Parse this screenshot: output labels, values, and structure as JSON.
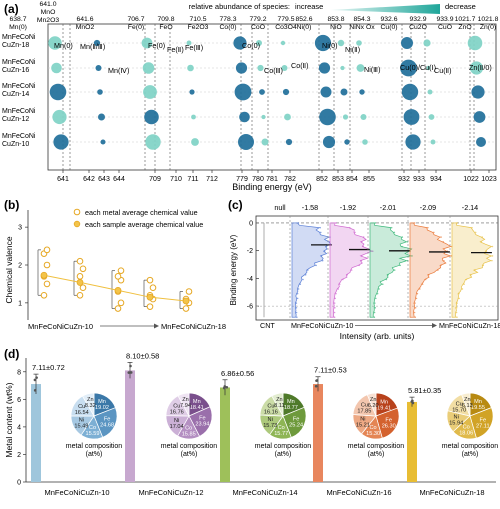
{
  "panel_labels": {
    "a": "(a)",
    "b": "(b)",
    "c": "(c)",
    "d": "(d)"
  },
  "colors": {
    "teal_dark": "#1f6f9a",
    "teal_light": "#7fd3c6",
    "gold": "#e6a824"
  },
  "chart_data": [
    {
      "type": "scatter",
      "panel": "a",
      "xlabel": "Binding energy (eV)",
      "legend_text": "relative abundance of species:",
      "legend_increase": "increase",
      "legend_decrease": "decrease",
      "samples": [
        "MnFeCoNi\nCuZn-18",
        "MnFeCoNi\nCuZn-16",
        "MnFeCoNi\nCuZn-14",
        "MnFeCoNi\nCuZn-12",
        "MnFeCoNi\nCuZn-10"
      ],
      "ticks": [
        "641",
        "642",
        "643",
        "644",
        "709",
        "710",
        "711",
        "712",
        "779",
        "780",
        "781",
        "782",
        "852",
        "853",
        "854",
        "855",
        "932",
        "933",
        "934",
        "1022",
        "1023"
      ],
      "reference_lines": [
        {
          "value": "638.7",
          "species": "Mn(0)"
        },
        {
          "value": "641.0",
          "species": "MnO\nMn2O3"
        },
        {
          "value": "641.6",
          "species": "MnO2"
        },
        {
          "value": "706.7",
          "species": "Fe(0)"
        },
        {
          "value": "709.8",
          "species": "FeO"
        },
        {
          "value": "710.5",
          "species": "Fe2O3"
        },
        {
          "value": "778.3",
          "species": "Co(0)"
        },
        {
          "value": "779.2",
          "species": "CoO"
        },
        {
          "value": "779.5",
          "species": "Co3O4"
        },
        {
          "value": "852.6",
          "species": "Ni(0)"
        },
        {
          "value": "853.8",
          "species": "NiO"
        },
        {
          "value": "854.3",
          "species": "NiNx Ox"
        },
        {
          "value": "932.6",
          "species": "Cu(0)"
        },
        {
          "value": "932.9",
          "species": "Cu2O"
        },
        {
          "value": "933.9",
          "species": "CuO"
        },
        {
          "value": "1021.7",
          "species": "ZnO"
        },
        {
          "value": "1021.8",
          "species": "Zn(0)"
        }
      ],
      "species_annotations": [
        "Mn(0)",
        "Mn(Ⅱ/Ⅲ)",
        "Mn(Ⅳ)",
        "Fe(0)",
        "Fe(Ⅱ)",
        "Fe(Ⅲ)",
        "Co(0)",
        "Co(Ⅲ)",
        "Co(Ⅱ)",
        "Ni(0)",
        "Ni(Ⅱ)",
        "Ni(Ⅲ)",
        "Cu(0)/Cu(Ⅰ)",
        "Cu(Ⅱ)",
        "Zn(Ⅱ/0)"
      ]
    },
    {
      "type": "scatter",
      "panel": "b",
      "ylabel": "Chemical valence",
      "legend": [
        "each metal average chemical value",
        "each sample average chemical value"
      ],
      "x_start_label": "MnFeCoNiCuZn-10",
      "x_end_label": "MnFeCoNiCuZn-18",
      "yticks": [
        "1",
        "2",
        "3"
      ],
      "ylim": [
        0.6,
        3.4
      ],
      "groups": [
        {
          "sample": "MnFeCoNiCuZn-10",
          "metal_values": [
            1.2,
            1.5,
            1.7,
            2.0,
            2.3,
            2.4
          ],
          "average": 1.73
        },
        {
          "sample": "MnFeCoNiCuZn-12",
          "metal_values": [
            1.2,
            1.4,
            1.7,
            1.9,
            2.1
          ],
          "average": 1.54
        },
        {
          "sample": "MnFeCoNiCuZn-14",
          "metal_values": [
            0.85,
            1.0,
            1.3,
            1.6,
            1.7,
            1.85
          ],
          "average": 1.33
        },
        {
          "sample": "MnFeCoNiCuZn-16",
          "metal_values": [
            0.9,
            1.1,
            1.2,
            1.4,
            1.6
          ],
          "average": 1.15
        },
        {
          "sample": "MnFeCoNiCuZn-18",
          "metal_values": [
            0.85,
            1.0,
            1.1,
            1.3
          ],
          "average": 1.05
        }
      ]
    },
    {
      "type": "area",
      "panel": "c",
      "ylabel": "Binding energy (eV)",
      "xlabel": "Intensity (arb. units)",
      "yticks": [
        "0",
        "-2",
        "-4",
        "-6"
      ],
      "ylim": [
        -7,
        0.5
      ],
      "bottom_labels": [
        "CNT",
        "MnFeCoNiCuZn-10",
        "MnFeCoNiCuZn-18"
      ],
      "series": [
        {
          "label": "null",
          "center": null,
          "color": "#9a9a9a"
        },
        {
          "label": "-1.58",
          "center": -1.58,
          "color": "#5a7fd6"
        },
        {
          "label": "-1.92",
          "center": -1.92,
          "color": "#d06ad0"
        },
        {
          "label": "-2.01",
          "center": -2.01,
          "color": "#3db87a"
        },
        {
          "label": "-2.09",
          "center": -2.09,
          "color": "#ea7a3a"
        },
        {
          "label": "-2.14",
          "center": -2.14,
          "color": "#e8c24a"
        }
      ]
    },
    {
      "type": "bar",
      "panel": "d",
      "ylabel": "Metal content (wt%)",
      "yticks": [
        "0",
        "2",
        "4",
        "6",
        "8"
      ],
      "ylim": [
        0,
        9
      ],
      "composition_caption": "metal composition\n(at%)",
      "categories": [
        "MnFeCoNiCuZn-10",
        "MnFeCoNiCuZn-12",
        "MnFeCoNiCuZn-14",
        "MnFeCoNiCuZn-16",
        "MnFeCoNiCuZn-18"
      ],
      "values": [
        7.11,
        8.1,
        6.86,
        7.11,
        5.81
      ],
      "errors": [
        0.72,
        0.58,
        0.56,
        0.53,
        0.35
      ],
      "labels": [
        "7.11±0.72",
        "8.10±0.58",
        "6.86±0.56",
        "7.11±0.53",
        "5.81±0.35"
      ],
      "bar_colors": [
        "#9fc6dc",
        "#c7a8cf",
        "#9ec05a",
        "#e8865e",
        "#e8bd34"
      ],
      "pies": [
        {
          "colors": [
            "#3b78a8",
            "#5b95c2",
            "#7cafd4",
            "#a6c8e2",
            "#c8def0",
            "#e2eef8"
          ],
          "slices": [
            {
              "label": "Mn",
              "value": 19.02
            },
            {
              "label": "Fe",
              "value": 24.68
            },
            {
              "label": "Co",
              "value": 15.59
            },
            {
              "label": "Ni",
              "value": 15.49
            },
            {
              "label": "Cu",
              "value": 16.54
            },
            {
              "label": "Zn",
              "value": 8.32
            }
          ]
        },
        {
          "colors": [
            "#7a4f8c",
            "#9a6fab",
            "#b48fc2",
            "#cbb0d6",
            "#dfcde6",
            "#efe4f3"
          ],
          "slices": [
            {
              "label": "Mn",
              "value": 18.41
            },
            {
              "label": "Fe",
              "value": 23.94
            },
            {
              "label": "Co",
              "value": 15.85
            },
            {
              "label": "Ni",
              "value": 17.04
            },
            {
              "label": "Cu",
              "value": 16.76
            },
            {
              "label": "Zn",
              "value": 7.94
            }
          ]
        },
        {
          "colors": [
            "#4f7a2a",
            "#6e9a3c",
            "#8eb555",
            "#adc97c",
            "#cbdca7",
            "#e3edd1"
          ],
          "slices": [
            {
              "label": "Mn",
              "value": 18.77
            },
            {
              "label": "Fe",
              "value": 25.24
            },
            {
              "label": "Co",
              "value": 15.77
            },
            {
              "label": "Ni",
              "value": 15.73
            },
            {
              "label": "Cu",
              "value": 16.16
            },
            {
              "label": "Zn",
              "value": 8.11
            }
          ]
        },
        {
          "colors": [
            "#b8421c",
            "#d4622e",
            "#e48554",
            "#eda883",
            "#f3c6ae",
            "#f8e0d3"
          ],
          "slices": [
            {
              "label": "Mn",
              "value": 19.41
            },
            {
              "label": "Fe",
              "value": 26.3
            },
            {
              "label": "Co",
              "value": 15.3
            },
            {
              "label": "Ni",
              "value": 15.21
            },
            {
              "label": "Cu",
              "value": 17.85
            },
            {
              "label": "Zn",
              "value": 6.2
            }
          ]
        },
        {
          "colors": [
            "#b88a12",
            "#d1a326",
            "#e0ba4a",
            "#eacd78",
            "#f2dea4",
            "#f8edd0"
          ],
          "slices": [
            {
              "label": "Mn",
              "value": 19.55
            },
            {
              "label": "Fe",
              "value": 27.11
            },
            {
              "label": "Co",
              "value": 18.06
            },
            {
              "label": "Ni",
              "value": 15.94
            },
            {
              "label": "Cu",
              "value": 15.7
            },
            {
              "label": "Zn",
              "value": 6.13
            }
          ]
        }
      ]
    }
  ]
}
